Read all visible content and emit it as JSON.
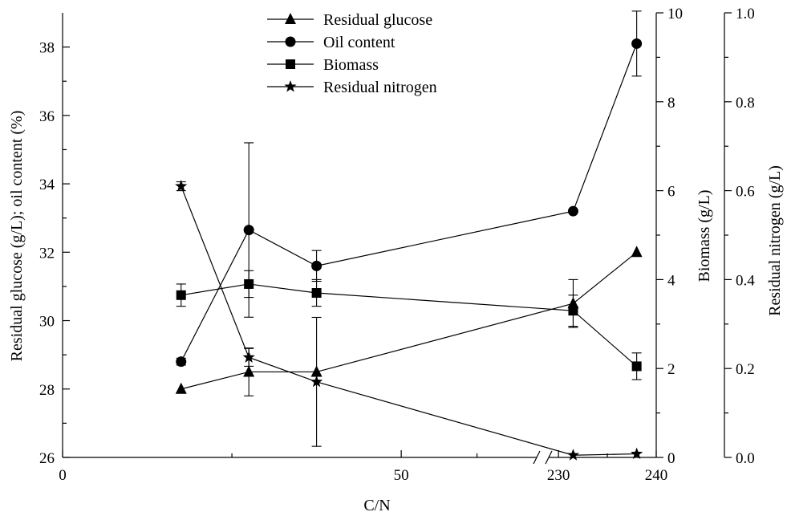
{
  "chart_data": {
    "type": "line",
    "xlabel": "C/N",
    "x_ticks": [
      {
        "label": "0",
        "value": 0
      },
      {
        "label": "50",
        "value": 50
      },
      {
        "label": "230",
        "value": 230
      },
      {
        "label": "240",
        "value": 240
      }
    ],
    "x_break": {
      "from": 70,
      "to": 229
    },
    "x_ranges": [
      [
        0,
        70
      ],
      [
        229,
        240
      ]
    ],
    "axes": {
      "left": {
        "label": "Residual glucose (g/L); oil content (%)",
        "ylim": [
          26,
          39
        ],
        "ticks": [
          "26",
          "28",
          "30",
          "32",
          "34",
          "36",
          "38"
        ]
      },
      "right1": {
        "label": "Biomass (g/L)",
        "ylim": [
          0,
          10
        ],
        "ticks": [
          "0",
          "2",
          "4",
          "6",
          "8",
          "10"
        ]
      },
      "right2": {
        "label": "Residual nitrogen (g/L)",
        "ylim": [
          0,
          1.0
        ],
        "ticks": [
          "0.0",
          "0.2",
          "0.4",
          "0.6",
          "0.8",
          "1.0"
        ]
      }
    },
    "legend": {
      "position": "top-center"
    },
    "series": [
      {
        "name": "Residual glucose",
        "marker": "triangle",
        "axis": "left",
        "x": [
          17.5,
          27.5,
          37.5,
          231.5,
          238
        ],
        "y": [
          28.0,
          28.5,
          28.5,
          30.5,
          32.0
        ],
        "err": [
          0,
          0.7,
          0,
          0.7,
          0
        ]
      },
      {
        "name": "Oil content",
        "marker": "circle",
        "axis": "left",
        "x": [
          17.5,
          27.5,
          37.5,
          231.5,
          238
        ],
        "y": [
          28.8,
          32.65,
          31.6,
          33.2,
          38.1
        ],
        "err": [
          0.1,
          2.55,
          0.45,
          0,
          0.95
        ]
      },
      {
        "name": "Biomass",
        "marker": "square",
        "axis": "right1",
        "x": [
          17.5,
          27.5,
          37.5,
          231.5,
          238
        ],
        "y": [
          3.65,
          3.9,
          3.7,
          3.3,
          2.05
        ],
        "err": [
          0.25,
          0.3,
          0.3,
          0.35,
          0.3
        ]
      },
      {
        "name": "Residual nitrogen",
        "marker": "star",
        "axis": "right2",
        "x": [
          17.5,
          27.5,
          37.5,
          231.5,
          238
        ],
        "y": [
          0.61,
          0.225,
          0.17,
          0.005,
          0.008
        ],
        "err": [
          0.01,
          0.02,
          0.145,
          0,
          0
        ]
      }
    ]
  }
}
